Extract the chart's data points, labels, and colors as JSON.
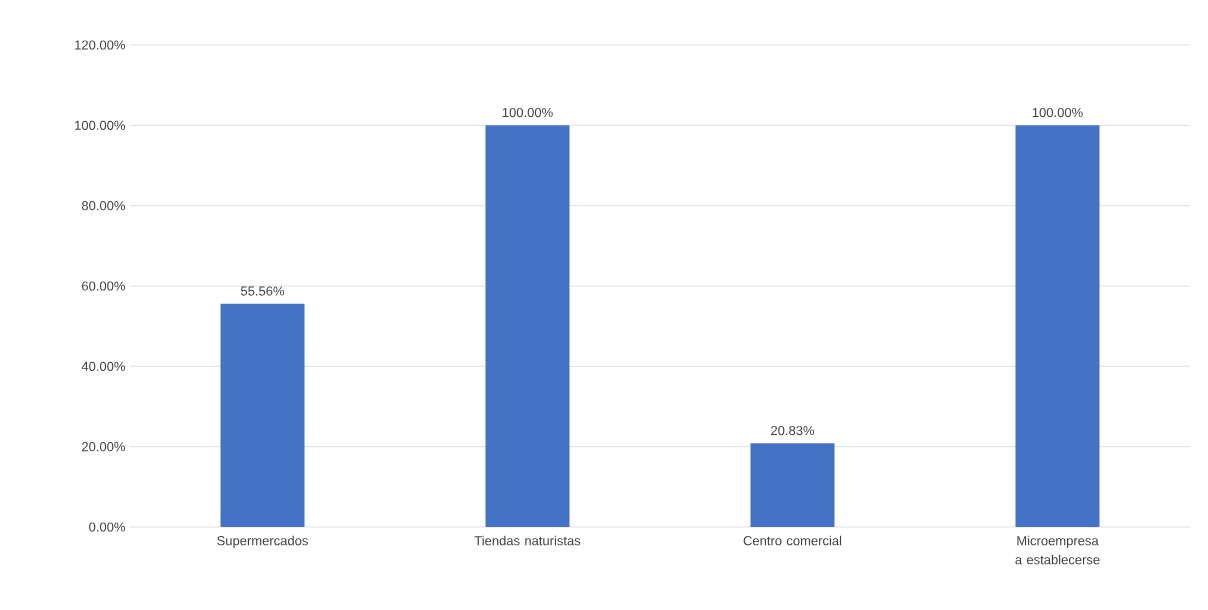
{
  "chart_data": {
    "type": "bar",
    "categories": [
      "Supermercados",
      "Tiendas naturistas",
      "Centro comercial",
      "Microempresa a establecerse"
    ],
    "values": [
      55.56,
      100,
      20.83,
      100
    ],
    "value_labels": [
      "55.56%",
      "100.00%",
      "20.83%",
      "100.00%"
    ],
    "color": "#4472c4",
    "ylim": [
      0,
      120
    ],
    "yticks": [
      {
        "value": 0,
        "label": "0.00%"
      },
      {
        "value": 20,
        "label": "20.00%"
      },
      {
        "value": 40,
        "label": "40.00%"
      },
      {
        "value": 60,
        "label": "60.00%"
      },
      {
        "value": 80,
        "label": "80.00%"
      },
      {
        "value": 100,
        "label": "100.00%"
      },
      {
        "value": 120,
        "label": "120.00%"
      }
    ],
    "grid": "y"
  }
}
